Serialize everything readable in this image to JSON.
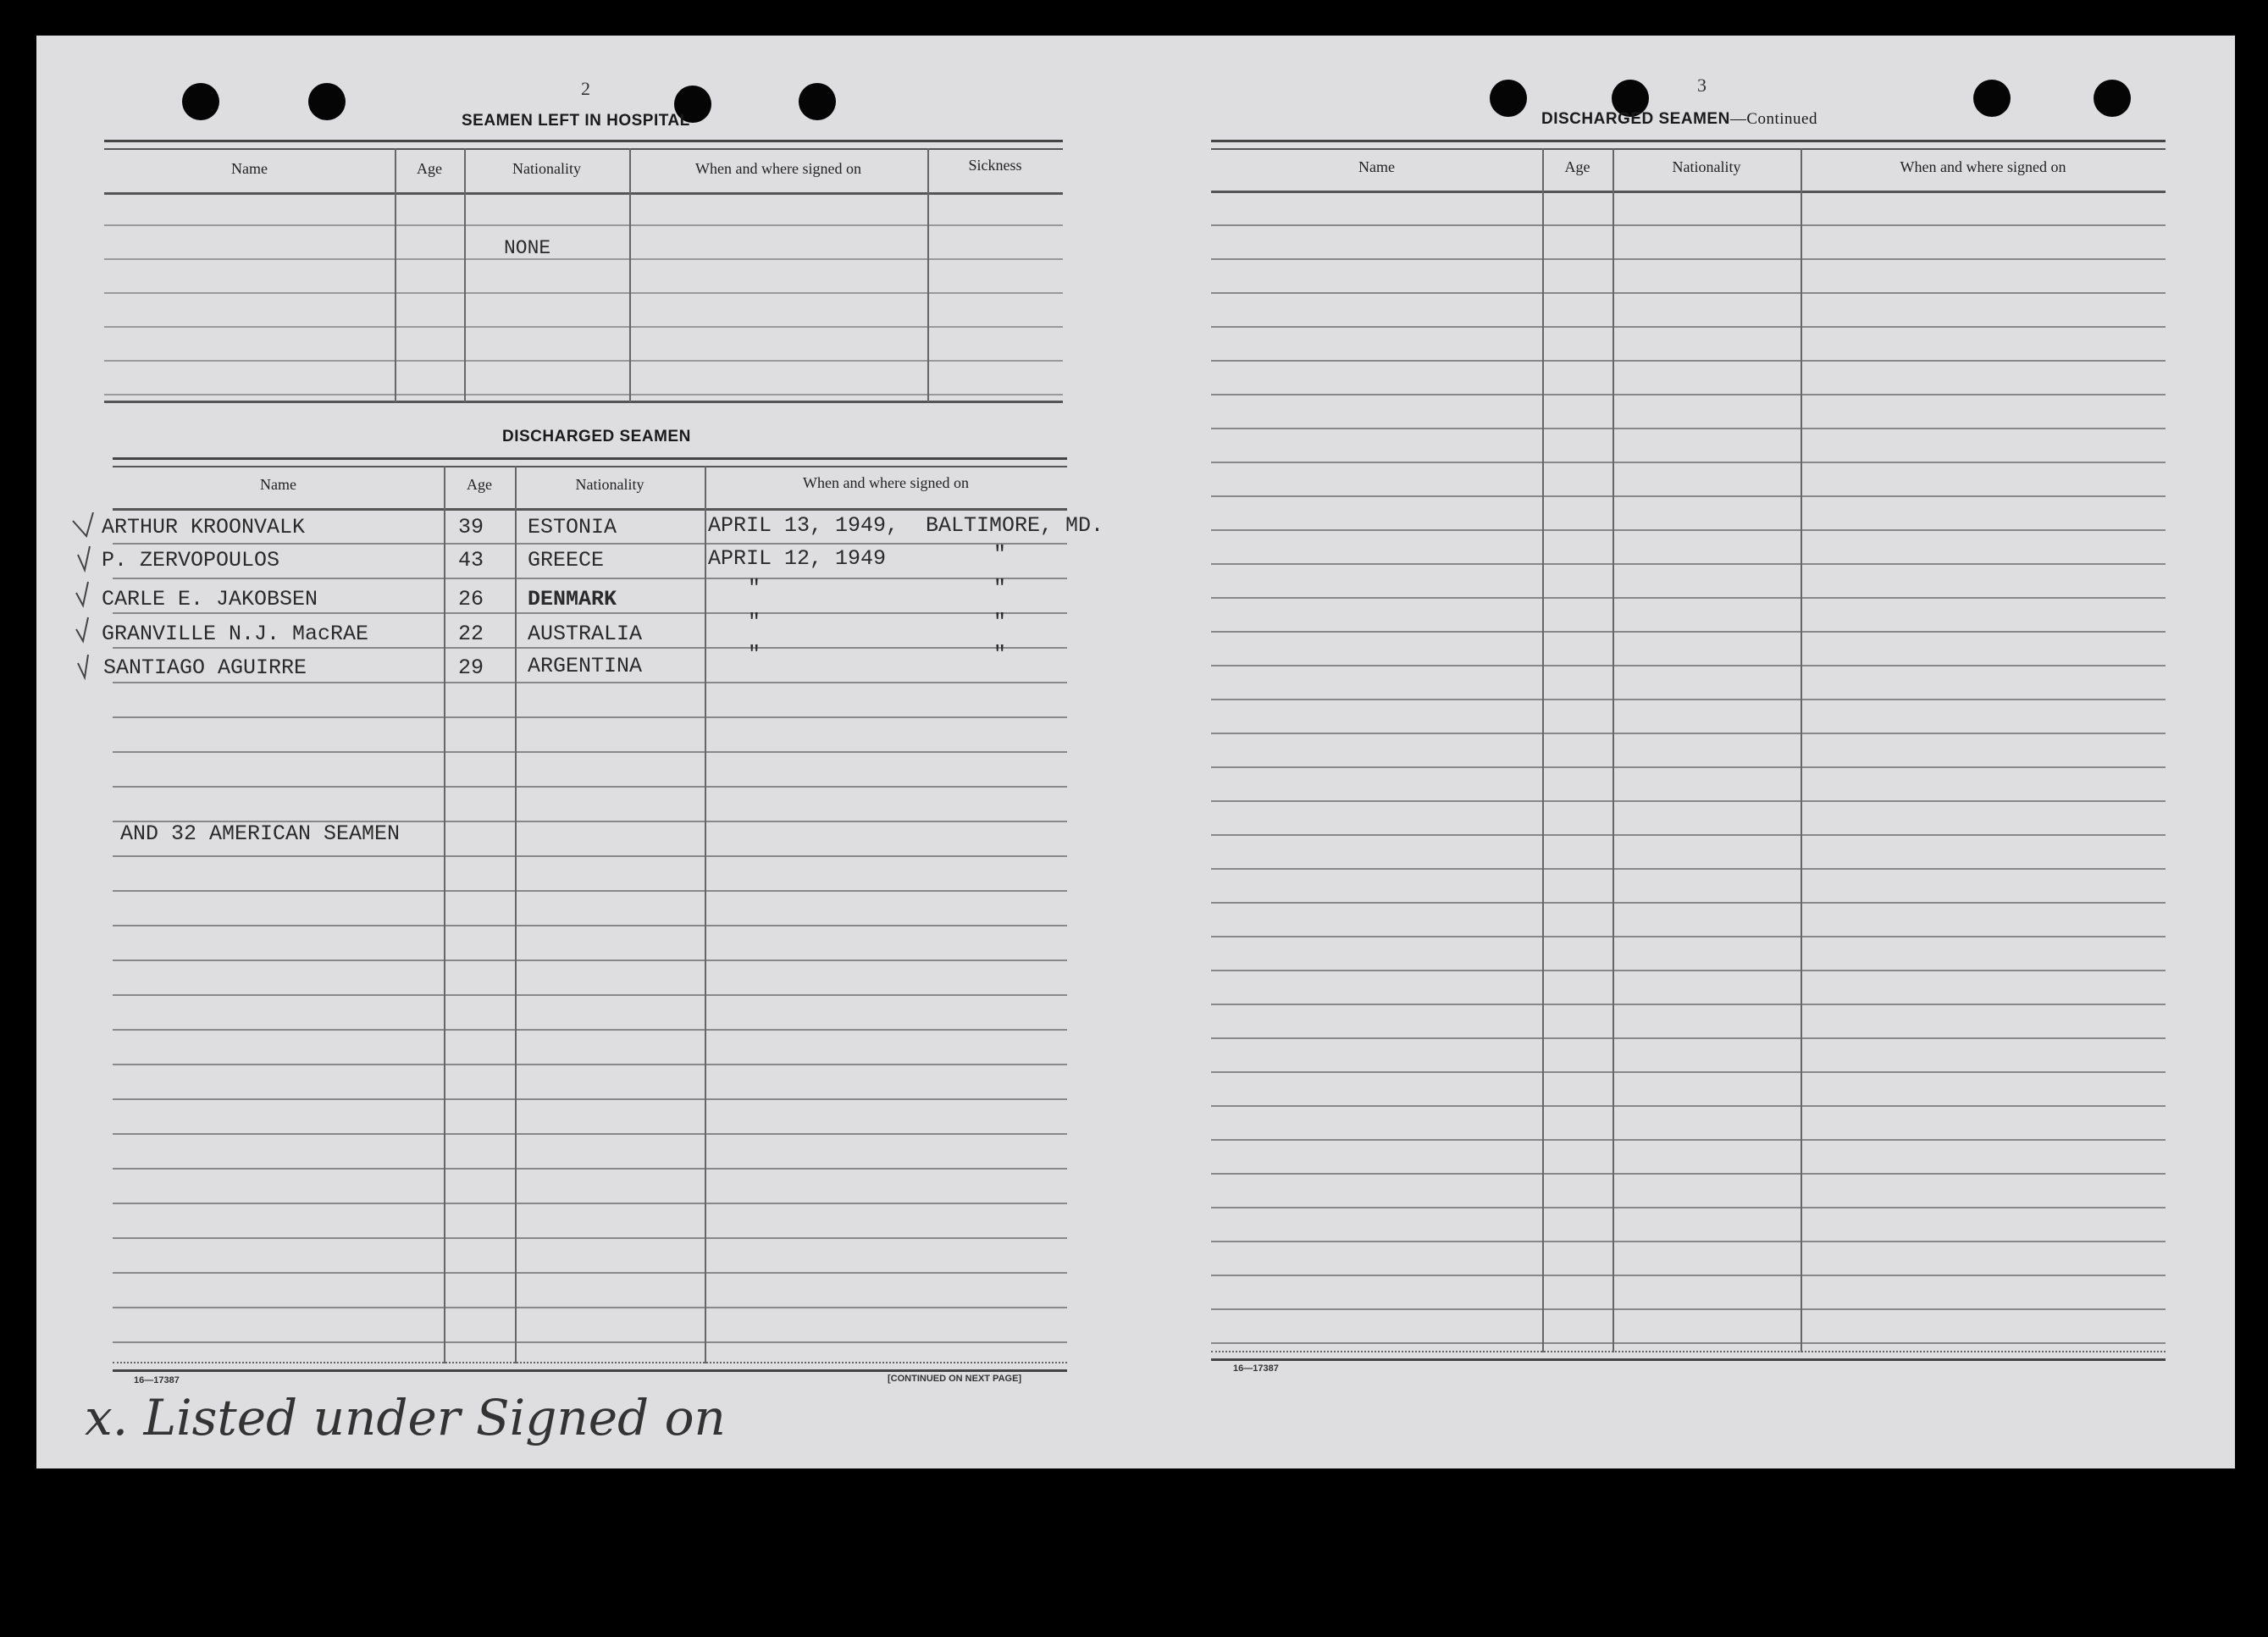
{
  "left_page": {
    "page_number": "2",
    "hospital": {
      "title": "SEAMEN LEFT IN HOSPITAL",
      "columns": [
        "Name",
        "Age",
        "Nationality",
        "When and where signed on",
        "Sickness"
      ],
      "entry": "NONE"
    },
    "discharged": {
      "title": "DISCHARGED SEAMEN",
      "columns": [
        "Name",
        "Age",
        "Nationality",
        "When and where signed on"
      ],
      "rows": [
        {
          "name": "ARTHUR KROONVALK",
          "age": "39",
          "nationality": "ESTONIA",
          "signed_date": "APRIL 13, 1949,",
          "signed_place": "BALTIMORE, MD."
        },
        {
          "name": "P. ZERVOPOULOS",
          "age": "43",
          "nationality": "GREECE",
          "signed_date": "APRIL 12, 1949",
          "signed_place": "\""
        },
        {
          "name": "CARLE E. JAKOBSEN",
          "age": "26",
          "nationality": "DENMARK",
          "signed_date": "\"",
          "signed_place": "\""
        },
        {
          "name": "GRANVILLE N.J. MacRAE",
          "age": "22",
          "nationality": "AUSTRALIA",
          "signed_date": "\"",
          "signed_place": "\""
        },
        {
          "name": "SANTIAGO AGUIRRE",
          "age": "29",
          "nationality": "ARGENTINA",
          "signed_date": "\"",
          "signed_place": "\""
        }
      ],
      "note": "AND 32 AMERICAN SEAMEN"
    },
    "form_number": "16—17387",
    "continued": "[CONTINUED ON NEXT PAGE]",
    "handwritten_note": "x. Listed under Signed on"
  },
  "right_page": {
    "page_number": "3",
    "title": "DISCHARGED SEAMEN",
    "title_suffix": "—Continued",
    "columns": [
      "Name",
      "Age",
      "Nationality",
      "When and where signed on"
    ],
    "form_number": "16—17387"
  }
}
